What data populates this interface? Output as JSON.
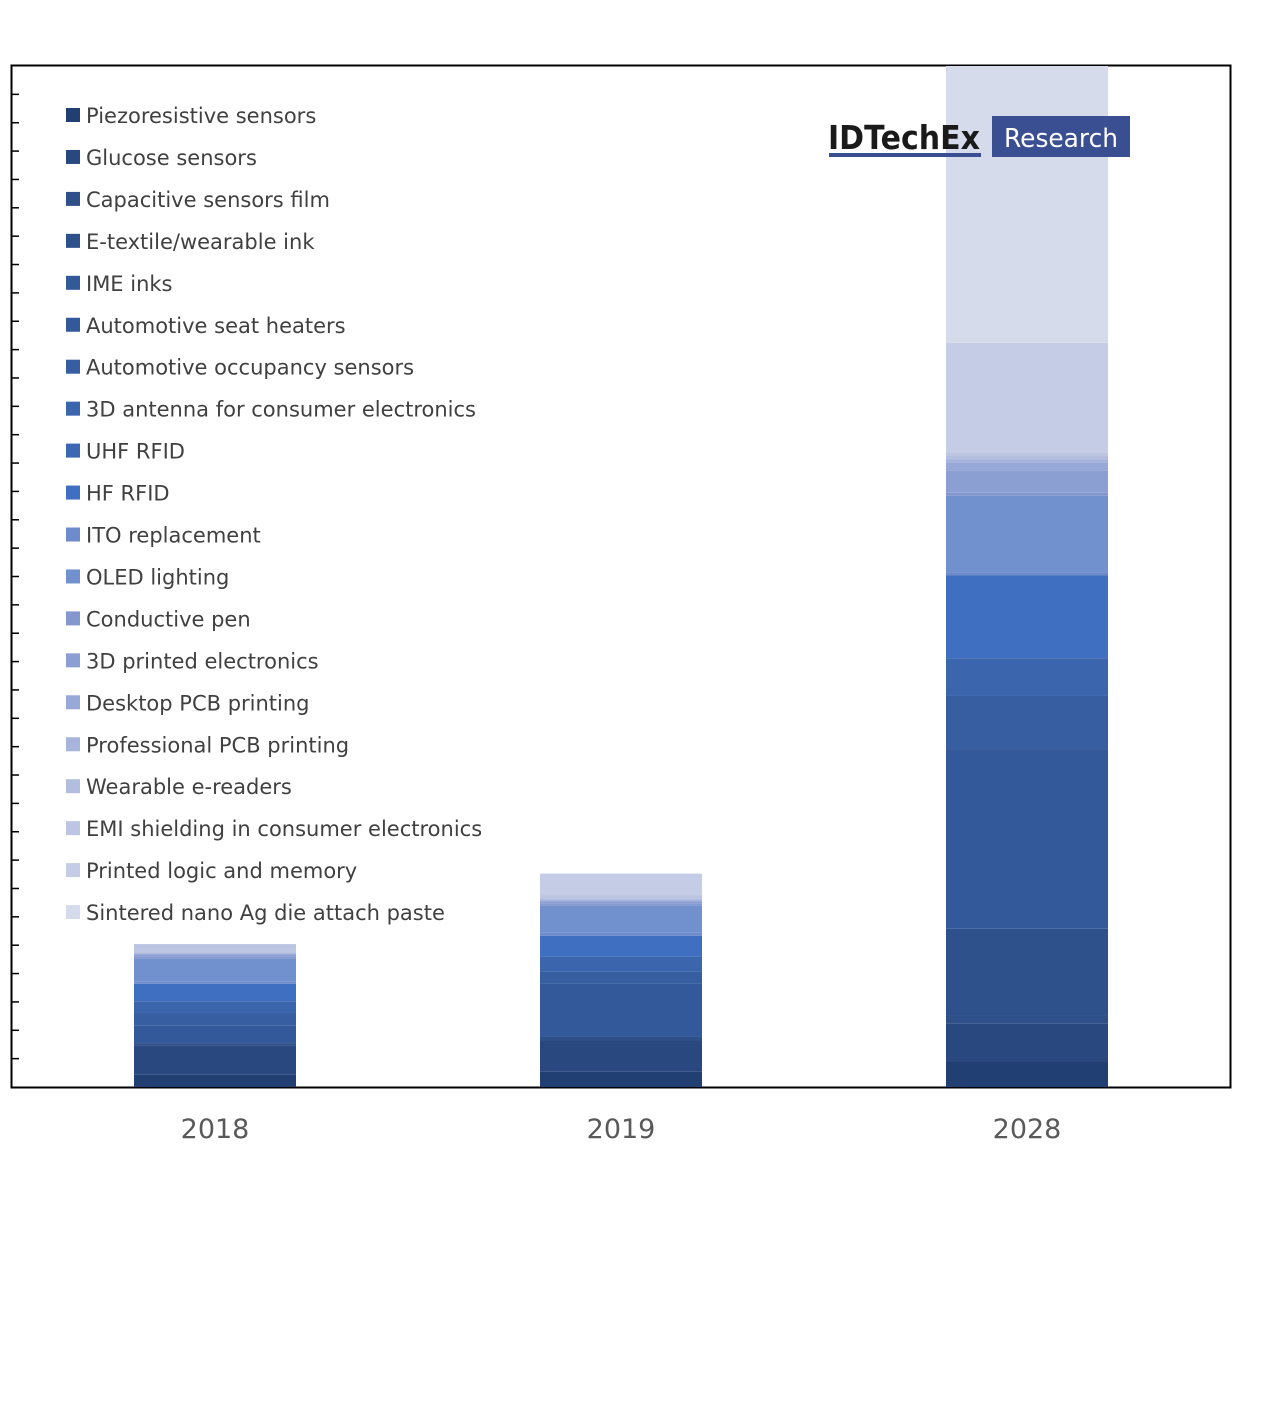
{
  "logo": {
    "brand": "IDTechEx",
    "tag": "Research"
  },
  "chart_data": {
    "type": "bar",
    "stacked": true,
    "categories": [
      "2018",
      "2019",
      "2028"
    ],
    "ylim": [
      0,
      1
    ],
    "y_ticks": 36,
    "grid": false,
    "legend_position": "top-left",
    "series": [
      {
        "name": "Piezoresistive sensors",
        "color": "#213f73",
        "values": [
          0.012,
          0.015,
          0.025
        ]
      },
      {
        "name": "Glucose sensors",
        "color": "#2a4880",
        "values": [
          0.029,
          0.031,
          0.037
        ]
      },
      {
        "name": "Capacitive sensors film",
        "color": "#2f4f89",
        "values": [
          0.002,
          0.003,
          0.008
        ]
      },
      {
        "name": "E-textile/wearable ink",
        "color": "#2f518b",
        "values": [
          0.0,
          0.0,
          0.085
        ]
      },
      {
        "name": "IME inks",
        "color": "#325a98",
        "values": [
          0.0,
          0.0,
          0.0
        ]
      },
      {
        "name": "Automotive seat heaters",
        "color": "#33599a",
        "values": [
          0.017,
          0.052,
          0.176
        ]
      },
      {
        "name": "Automotive occupancy sensors",
        "color": "#375ea0",
        "values": [
          0.012,
          0.012,
          0.052
        ]
      },
      {
        "name": "3D antenna for consumer electronics",
        "color": "#3b65ad",
        "values": [
          0.012,
          0.015,
          0.037
        ]
      },
      {
        "name": "UHF RFID",
        "color": "#3c68b3",
        "values": [
          0.0,
          0.0,
          0.0
        ]
      },
      {
        "name": "HF RFID",
        "color": "#3f6fc0",
        "values": [
          0.017,
          0.02,
          0.081
        ]
      },
      {
        "name": "ITO replacement",
        "color": "#6e8bcb",
        "values": [
          0.002,
          0.003,
          0.003
        ]
      },
      {
        "name": "OLED lighting",
        "color": "#7190ce",
        "values": [
          0.023,
          0.027,
          0.075
        ]
      },
      {
        "name": "Conductive pen",
        "color": "#8497cf",
        "values": [
          0.002,
          0.002,
          0.003
        ]
      },
      {
        "name": "3D printed electronics",
        "color": "#8c9fd3",
        "values": [
          0.002,
          0.002,
          0.022
        ]
      },
      {
        "name": "Desktop PCB printing",
        "color": "#97a9d8",
        "values": [
          0.001,
          0.001,
          0.008
        ]
      },
      {
        "name": "Professional PCB printing",
        "color": "#a7b5dc",
        "values": [
          0.0,
          0.001,
          0.003
        ]
      },
      {
        "name": "Wearable e-readers",
        "color": "#b3bedf",
        "values": [
          0.0,
          0.0,
          0.003
        ]
      },
      {
        "name": "EMI shielding in consumer electronics",
        "color": "#bcc6e2",
        "values": [
          0.009,
          0.004,
          0.003
        ]
      },
      {
        "name": "Printed logic and memory",
        "color": "#c4cde5",
        "values": [
          0.0,
          0.021,
          0.108
        ]
      },
      {
        "name": "Sintered nano Ag die attach paste",
        "color": "#d6dbec",
        "values": [
          0.0,
          0.0,
          0.271
        ]
      }
    ]
  }
}
